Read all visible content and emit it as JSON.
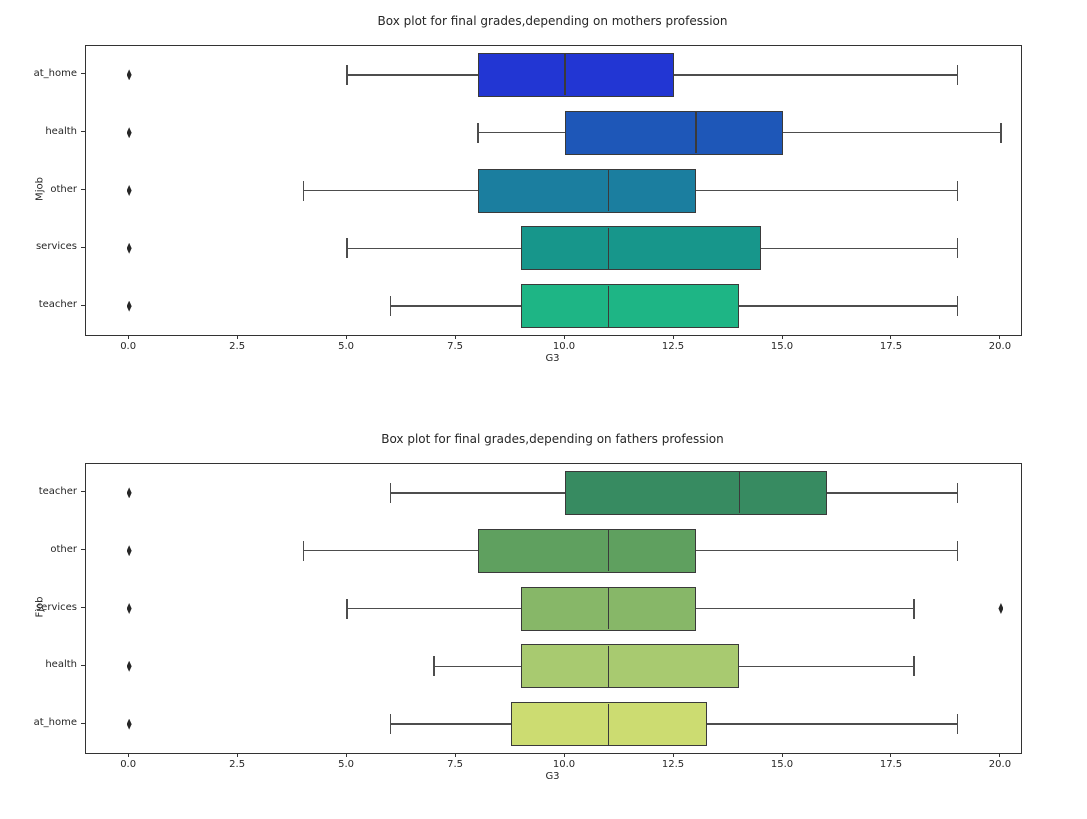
{
  "style": {
    "edge_color": "#3a3a3a",
    "whisker_color": "#4d4d4d",
    "flier_color": "#262626"
  },
  "chart_data": [
    {
      "type": "boxplot",
      "orientation": "horizontal",
      "title": "Box plot for final grades,depending on mothers profession",
      "xlabel": "G3",
      "ylabel": "Mjob",
      "xlim": [
        -0.99,
        20.46
      ],
      "grid": false,
      "xticks": [
        0.0,
        2.5,
        5.0,
        7.5,
        10.0,
        12.5,
        15.0,
        17.5,
        20.0
      ],
      "xtick_labels": [
        "0.0",
        "2.5",
        "5.0",
        "7.5",
        "10.0",
        "12.5",
        "15.0",
        "17.5",
        "20.0"
      ],
      "categories": [
        "at_home",
        "health",
        "other",
        "services",
        "teacher"
      ],
      "boxes": [
        {
          "label": "at_home",
          "whislo": 5,
          "q1": 8,
          "med": 10,
          "q3": 12.5,
          "whishi": 19,
          "outliers": [
            0
          ],
          "color": "#2236d3"
        },
        {
          "label": "health",
          "whislo": 8,
          "q1": 10,
          "med": 13,
          "q3": 15,
          "whishi": 20,
          "outliers": [
            0
          ],
          "color": "#1e57b8"
        },
        {
          "label": "other",
          "whislo": 4,
          "q1": 8,
          "med": 11,
          "q3": 13,
          "whishi": 19,
          "outliers": [
            0
          ],
          "color": "#1b7e9f"
        },
        {
          "label": "services",
          "whislo": 5,
          "q1": 9,
          "med": 11,
          "q3": 14.5,
          "whishi": 19,
          "outliers": [
            0
          ],
          "color": "#17968b"
        },
        {
          "label": "teacher",
          "whislo": 6,
          "q1": 9,
          "med": 11,
          "q3": 14,
          "whishi": 19,
          "outliers": [
            0
          ],
          "color": "#1eb585"
        }
      ]
    },
    {
      "type": "boxplot",
      "orientation": "horizontal",
      "title": "Box plot for final grades,depending on fathers profession",
      "xlabel": "G3",
      "ylabel": "Fjob",
      "xlim": [
        -0.99,
        20.46
      ],
      "grid": false,
      "xticks": [
        0.0,
        2.5,
        5.0,
        7.5,
        10.0,
        12.5,
        15.0,
        17.5,
        20.0
      ],
      "xtick_labels": [
        "0.0",
        "2.5",
        "5.0",
        "7.5",
        "10.0",
        "12.5",
        "15.0",
        "17.5",
        "20.0"
      ],
      "categories": [
        "teacher",
        "other",
        "services",
        "health",
        "at_home"
      ],
      "boxes": [
        {
          "label": "teacher",
          "whislo": 6,
          "q1": 10,
          "med": 14,
          "q3": 16,
          "whishi": 19,
          "outliers": [
            0
          ],
          "color": "#378b61"
        },
        {
          "label": "other",
          "whislo": 4,
          "q1": 8,
          "med": 11,
          "q3": 13,
          "whishi": 19,
          "outliers": [
            0
          ],
          "color": "#5fa05f"
        },
        {
          "label": "services",
          "whislo": 5,
          "q1": 9,
          "med": 11,
          "q3": 13,
          "whishi": 18,
          "outliers": [
            0,
            20
          ],
          "color": "#87b768"
        },
        {
          "label": "health",
          "whislo": 7,
          "q1": 9,
          "med": 11,
          "q3": 14,
          "whishi": 18,
          "outliers": [
            0
          ],
          "color": "#a8ca70"
        },
        {
          "label": "at_home",
          "whislo": 6,
          "q1": 8.75,
          "med": 11,
          "q3": 13.25,
          "whishi": 19,
          "outliers": [
            0
          ],
          "color": "#ccdc71"
        }
      ]
    }
  ]
}
